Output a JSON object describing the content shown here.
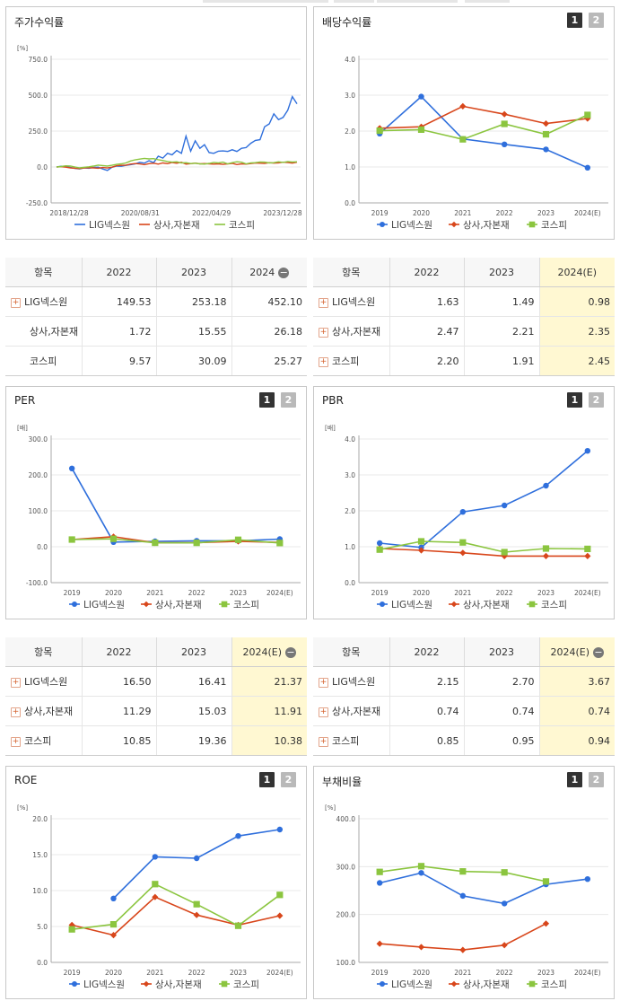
{
  "colors": {
    "lig": "#2f6fdc",
    "sangsa": "#d8461b",
    "kospi": "#8bc53f"
  },
  "legend": [
    "LIG넥스원",
    "상사,자본재",
    "코스피"
  ],
  "pages": [
    "1",
    "2"
  ],
  "panels": {
    "p_stock": {
      "title": "주가수익률"
    },
    "p_div": {
      "title": "배당수익률"
    },
    "p_per": {
      "title": "PER"
    },
    "p_pbr": {
      "title": "PBR"
    },
    "p_roe": {
      "title": "ROE"
    },
    "p_debt": {
      "title": "부채비율"
    }
  },
  "chart_data": [
    {
      "id": "stock",
      "type": "line",
      "title": "주가수익률",
      "unit": "[%]",
      "xticks": [
        "2018/12/28",
        "2020/08/31",
        "2022/04/29",
        "2023/12/28"
      ],
      "yticks": [
        "750.0",
        "500.0",
        "250.0",
        "0.0",
        "-250.0"
      ],
      "ylim": [
        -250,
        750
      ],
      "series": [
        {
          "name": "LIG넥스원",
          "color": "lig",
          "values": [
            0,
            5,
            3,
            -4,
            -10,
            -14,
            -6,
            -9,
            -4,
            -1,
            -14,
            -24,
            -2,
            6,
            5,
            11,
            16,
            21,
            32,
            27,
            44,
            30,
            75,
            62,
            95,
            85,
            115,
            95,
            215,
            110,
            182,
            130,
            155,
            100,
            95,
            110,
            112,
            108,
            120,
            108,
            130,
            135,
            165,
            185,
            190,
            280,
            300,
            370,
            330,
            345,
            395,
            490,
            440
          ]
        },
        {
          "name": "상사,자본재",
          "color": "sangsa",
          "values": [
            0,
            2,
            -1,
            -6,
            -9,
            -11,
            -7,
            -5,
            -6,
            -9,
            -4,
            -7,
            -1,
            9,
            11,
            13,
            20,
            24,
            21,
            16,
            23,
            26,
            20,
            28,
            23,
            31,
            26,
            33,
            20,
            23,
            27,
            22,
            24,
            22,
            20,
            22,
            18,
            21,
            25,
            17,
            22,
            20,
            24,
            28,
            26,
            25,
            30,
            27,
            29,
            33,
            31,
            27,
            33
          ]
        },
        {
          "name": "코스피",
          "color": "kospi",
          "values": [
            0,
            3,
            8,
            6,
            0,
            -6,
            -2,
            1,
            6,
            13,
            10,
            7,
            12,
            18,
            22,
            28,
            42,
            50,
            55,
            60,
            56,
            58,
            50,
            45,
            38,
            34,
            36,
            28,
            30,
            24,
            26,
            22,
            20,
            25,
            32,
            28,
            34,
            22,
            30,
            36,
            33,
            22,
            28,
            30,
            35,
            34,
            28,
            30,
            36,
            32,
            38,
            35,
            36
          ]
        }
      ]
    },
    {
      "id": "div",
      "type": "line",
      "title": "배당수익률",
      "categories": [
        "2019",
        "2020",
        "2021",
        "2022",
        "2023",
        "2024(E)"
      ],
      "yticks": [
        "4.0",
        "3.0",
        "2.0",
        "1.0",
        "0.0"
      ],
      "ylim": [
        0,
        4
      ],
      "series": [
        {
          "name": "LIG넥스원",
          "color": "lig",
          "values": [
            1.93,
            2.96,
            1.78,
            1.63,
            1.49,
            0.98
          ]
        },
        {
          "name": "상사,자본재",
          "color": "sangsa",
          "values": [
            2.08,
            2.12,
            2.69,
            2.47,
            2.21,
            2.35
          ]
        },
        {
          "name": "코스피",
          "color": "kospi",
          "values": [
            2.01,
            2.04,
            1.77,
            2.2,
            1.91,
            2.45
          ]
        }
      ]
    },
    {
      "id": "per",
      "type": "line",
      "title": "PER",
      "unit": "[배]",
      "categories": [
        "2019",
        "2020",
        "2021",
        "2022",
        "2023",
        "2024(E)"
      ],
      "yticks": [
        "300.0",
        "200.0",
        "100.0",
        "0.0",
        "-100.0"
      ],
      "ylim": [
        -100,
        300
      ],
      "series": [
        {
          "name": "LIG넥스원",
          "color": "lig",
          "values": [
            218,
            13,
            15,
            16.5,
            16.41,
            21.37
          ]
        },
        {
          "name": "상사,자본재",
          "color": "sangsa",
          "values": [
            20,
            28,
            11,
            11.29,
            15.03,
            11.91
          ]
        },
        {
          "name": "코스피",
          "color": "kospi",
          "values": [
            20,
            22,
            11,
            10.85,
            19.36,
            10.38
          ]
        }
      ]
    },
    {
      "id": "pbr",
      "type": "line",
      "title": "PBR",
      "unit": "[배]",
      "categories": [
        "2019",
        "2020",
        "2021",
        "2022",
        "2023",
        "2024(E)"
      ],
      "yticks": [
        "4.0",
        "3.0",
        "2.0",
        "1.0",
        "0.0"
      ],
      "ylim": [
        0,
        4
      ],
      "series": [
        {
          "name": "LIG넥스원",
          "color": "lig",
          "values": [
            1.1,
            0.98,
            1.97,
            2.15,
            2.7,
            3.67
          ]
        },
        {
          "name": "상사,자본재",
          "color": "sangsa",
          "values": [
            0.95,
            0.9,
            0.83,
            0.74,
            0.74,
            0.74
          ]
        },
        {
          "name": "코스피",
          "color": "kospi",
          "values": [
            0.92,
            1.15,
            1.12,
            0.85,
            0.95,
            0.94
          ]
        }
      ]
    },
    {
      "id": "roe",
      "type": "line",
      "title": "ROE",
      "unit": "[%]",
      "categories": [
        "2019",
        "2020",
        "2021",
        "2022",
        "2023",
        "2024(E)"
      ],
      "yticks": [
        "20.0",
        "15.0",
        "10.0",
        "5.0",
        "0.0"
      ],
      "ylim": [
        0,
        20
      ],
      "series": [
        {
          "name": "LIG넥스원",
          "color": "lig",
          "values": [
            null,
            8.9,
            14.7,
            14.5,
            17.6,
            18.5
          ]
        },
        {
          "name": "상사,자본재",
          "color": "sangsa",
          "values": [
            5.2,
            3.8,
            9.1,
            6.6,
            5.2,
            6.5
          ]
        },
        {
          "name": "코스피",
          "color": "kospi",
          "values": [
            4.6,
            5.3,
            10.9,
            8.1,
            5.1,
            9.4
          ]
        }
      ]
    },
    {
      "id": "debt",
      "type": "line",
      "title": "부채비율",
      "unit": "[%]",
      "categories": [
        "2019",
        "2020",
        "2021",
        "2022",
        "2023",
        "2024(E)"
      ],
      "yticks": [
        "400.0",
        "300.0",
        "200.0",
        "100.0"
      ],
      "ylim": [
        100,
        400
      ],
      "series": [
        {
          "name": "LIG넥스원",
          "color": "lig",
          "values": [
            266,
            287,
            239,
            223,
            263,
            274
          ]
        },
        {
          "name": "상사,자본재",
          "color": "sangsa",
          "values": [
            139,
            132,
            126,
            136,
            181,
            null
          ]
        },
        {
          "name": "코스피",
          "color": "kospi",
          "values": [
            289,
            301,
            290,
            288,
            269,
            null
          ]
        }
      ]
    }
  ],
  "tables": [
    {
      "id": "t_stock",
      "headers": [
        "항목",
        "2022",
        "2023",
        "2024"
      ],
      "minus": true,
      "highlight": false,
      "rows": [
        {
          "name": "LIG넥스원",
          "plus": true,
          "values": [
            "149.53",
            "253.18",
            "452.10"
          ]
        },
        {
          "name": "상사,자본재",
          "plus": false,
          "values": [
            "1.72",
            "15.55",
            "26.18"
          ]
        },
        {
          "name": "코스피",
          "plus": false,
          "values": [
            "9.57",
            "30.09",
            "25.27"
          ]
        }
      ]
    },
    {
      "id": "t_div",
      "headers": [
        "항목",
        "2022",
        "2023",
        "2024(E)"
      ],
      "minus": false,
      "highlight": true,
      "rows": [
        {
          "name": "LIG넥스원",
          "plus": true,
          "values": [
            "1.63",
            "1.49",
            "0.98"
          ]
        },
        {
          "name": "상사,자본재",
          "plus": true,
          "values": [
            "2.47",
            "2.21",
            "2.35"
          ]
        },
        {
          "name": "코스피",
          "plus": true,
          "values": [
            "2.20",
            "1.91",
            "2.45"
          ]
        }
      ]
    },
    {
      "id": "t_per",
      "headers": [
        "항목",
        "2022",
        "2023",
        "2024(E)"
      ],
      "minus": true,
      "highlight": true,
      "rows": [
        {
          "name": "LIG넥스원",
          "plus": true,
          "values": [
            "16.50",
            "16.41",
            "21.37"
          ]
        },
        {
          "name": "상사,자본재",
          "plus": true,
          "values": [
            "11.29",
            "15.03",
            "11.91"
          ]
        },
        {
          "name": "코스피",
          "plus": true,
          "values": [
            "10.85",
            "19.36",
            "10.38"
          ]
        }
      ]
    },
    {
      "id": "t_pbr",
      "headers": [
        "항목",
        "2022",
        "2023",
        "2024(E)"
      ],
      "minus": true,
      "highlight": true,
      "rows": [
        {
          "name": "LIG넥스원",
          "plus": true,
          "values": [
            "2.15",
            "2.70",
            "3.67"
          ]
        },
        {
          "name": "상사,자본재",
          "plus": true,
          "values": [
            "0.74",
            "0.74",
            "0.74"
          ]
        },
        {
          "name": "코스피",
          "plus": true,
          "values": [
            "0.85",
            "0.95",
            "0.94"
          ]
        }
      ]
    }
  ]
}
